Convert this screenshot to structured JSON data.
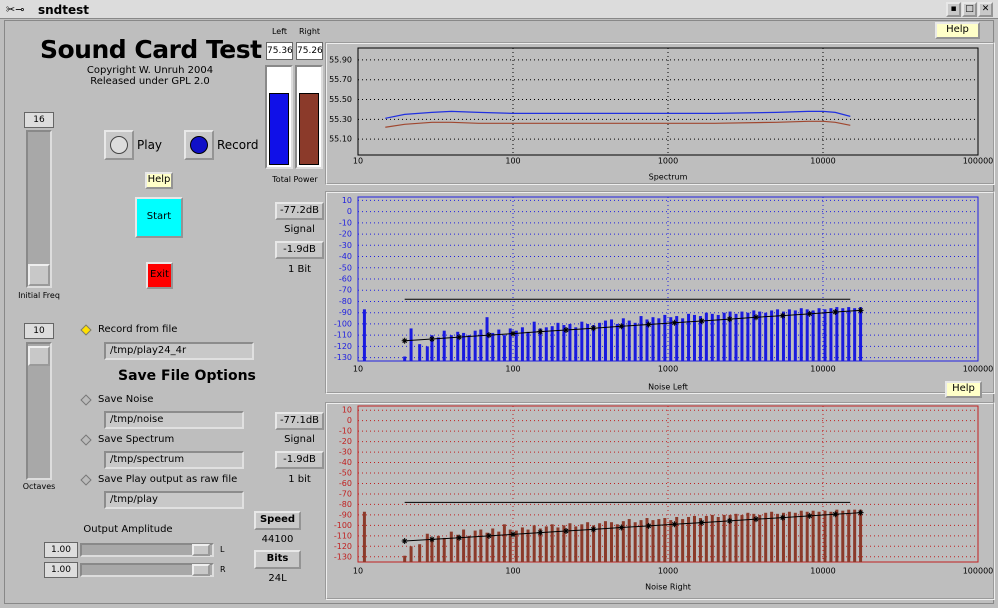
{
  "window": {
    "title": "sndtest"
  },
  "header": {
    "title": "Sound Card Test",
    "copyright": "Copyright W. Unruh 2004",
    "license": "Released under GPL 2.0"
  },
  "sliders": [
    {
      "value": "16",
      "label": "Initial Freq"
    },
    {
      "value": "10",
      "label": "Octaves"
    }
  ],
  "buttons": {
    "play": "Play",
    "record": "Record",
    "help": "Help",
    "start": "Start",
    "exit": "Exit",
    "help_top": "Help",
    "help_mid": "Help"
  },
  "record_from_file": {
    "label": "Record from file",
    "path": "/tmp/play24_4r"
  },
  "save_options": {
    "title": "Save File Options",
    "items": [
      {
        "label": "Save Noise",
        "path": "/tmp/noise"
      },
      {
        "label": "Save Spectrum",
        "path": "/tmp/spectrum"
      },
      {
        "label": "Save Play output as raw file",
        "path": "/tmp/play"
      }
    ]
  },
  "output_amplitude": {
    "label": "Output Amplitude",
    "channels": [
      {
        "value": "1.00",
        "label": "L"
      },
      {
        "value": "1.00",
        "label": "R"
      }
    ]
  },
  "speed": {
    "button": "Speed",
    "value": "44100"
  },
  "bits": {
    "button": "Bits",
    "value": "24L"
  },
  "meters": {
    "left": {
      "label": "Left",
      "value": "75.36"
    },
    "right": {
      "label": "Right",
      "value": "75.26"
    },
    "caption": "Total Power"
  },
  "noise_left_controls": {
    "signal_db": "-77.2dB",
    "signal_label": "Signal",
    "bit_db": "-1.9dB",
    "bit_label": "1 Bit"
  },
  "noise_right_controls": {
    "signal_db": "-77.1dB",
    "signal_label": "Signal",
    "bit_db": "-1.9dB",
    "bit_label": "1 bit"
  },
  "chart_data": [
    {
      "type": "line",
      "xlabel": "Spectrum",
      "xscale": "log",
      "xlim": [
        10,
        100000
      ],
      "xticks": [
        10,
        100,
        1000,
        10000,
        100000
      ],
      "ylim": [
        54.94,
        56.02
      ],
      "yticks": [
        {
          "value": 55.1,
          "label": "55.10"
        },
        {
          "value": 55.3,
          "label": "55.30"
        },
        {
          "value": 55.5,
          "label": "55.50"
        },
        {
          "value": 55.7,
          "label": "55.70"
        },
        {
          "value": 55.9,
          "label": "55.90"
        }
      ],
      "grid": true,
      "grid_color": "#000000",
      "series": [
        {
          "color": "#2030e0",
          "x": [
            15,
            20,
            30,
            40,
            60,
            100,
            200,
            500,
            1000,
            2000,
            5000,
            8000,
            10000,
            12000,
            15000
          ],
          "values": [
            55.31,
            55.35,
            55.37,
            55.38,
            55.37,
            55.36,
            55.36,
            55.36,
            55.36,
            55.36,
            55.37,
            55.38,
            55.38,
            55.37,
            55.33
          ]
        },
        {
          "color": "#a04830",
          "x": [
            15,
            20,
            30,
            40,
            60,
            100,
            200,
            500,
            1000,
            2000,
            5000,
            8000,
            10000,
            12000,
            15000
          ],
          "values": [
            55.22,
            55.25,
            55.27,
            55.27,
            55.26,
            55.26,
            55.26,
            55.26,
            55.26,
            55.26,
            55.27,
            55.28,
            55.28,
            55.27,
            55.24
          ]
        }
      ]
    },
    {
      "type": "bar",
      "xlabel": "Noise Left",
      "xscale": "log",
      "xlim": [
        10,
        100000
      ],
      "xticks": [
        10,
        100,
        1000,
        10000,
        100000
      ],
      "ylim": [
        -133,
        13
      ],
      "yticks": [
        10,
        0,
        -10,
        -20,
        -30,
        -40,
        -50,
        -60,
        -70,
        -80,
        -90,
        -100,
        -110,
        -120,
        -130
      ],
      "grid": true,
      "grid_color": "#2020e0",
      "bars": {
        "color": "#1a1ae0",
        "x": [
          11,
          20,
          22,
          25,
          28,
          30,
          33,
          36,
          40,
          44,
          48,
          52,
          57,
          62,
          68,
          74,
          81,
          88,
          96,
          105,
          115,
          125,
          137,
          150,
          164,
          179,
          195,
          213,
          233,
          254,
          278,
          303,
          331,
          362,
          395,
          432,
          471,
          515,
          562,
          614,
          670,
          732,
          800,
          873,
          954,
          1042,
          1138,
          1243,
          1357,
          1482,
          1619,
          1768,
          1931,
          2109,
          2303,
          2515,
          2747,
          3000,
          3276,
          3578,
          3908,
          4268,
          4661,
          5090,
          5559,
          6071,
          6630,
          7241,
          7908,
          8636,
          9432,
          10300,
          11249,
          12285,
          13416,
          14652,
          16002,
          17476
        ],
        "values": [
          -87,
          -129,
          -104,
          -118,
          -120,
          -110,
          -112,
          -106,
          -110,
          -107,
          -108,
          -110,
          -106,
          -105,
          -94,
          -108,
          -105,
          -110,
          -104,
          -106,
          -103,
          -107,
          -98,
          -104,
          -103,
          -102,
          -99,
          -101,
          -100,
          -103,
          -98,
          -100,
          -101,
          -99,
          -97,
          -96,
          -100,
          -95,
          -97,
          -99,
          -93,
          -96,
          -94,
          -95,
          -92,
          -94,
          -93,
          -95,
          -91,
          -92,
          -93,
          -90,
          -91,
          -92,
          -90,
          -89,
          -91,
          -89,
          -90,
          -88,
          -89,
          -90,
          -88,
          -87,
          -89,
          -87,
          -88,
          -86,
          -87,
          -88,
          -86,
          -87,
          -86,
          -85,
          -86,
          -85,
          -86,
          -85
        ]
      },
      "fit": {
        "color": "#000000",
        "x": [
          20,
          30,
          45,
          70,
          100,
          150,
          220,
          330,
          500,
          750,
          1100,
          1650,
          2500,
          3700,
          5500,
          8200,
          12000,
          17476
        ],
        "values": [
          -115,
          -113.4,
          -111.8,
          -110,
          -108.6,
          -106.9,
          -105.4,
          -103.8,
          -102.1,
          -100.5,
          -99,
          -97.4,
          -95.7,
          -94.1,
          -92.6,
          -91,
          -89.4,
          -87.9
        ]
      },
      "threshold": {
        "color": "#000000",
        "x": [
          20,
          15000
        ],
        "values": [
          -78,
          -78
        ]
      }
    },
    {
      "type": "bar",
      "xlabel": "Noise Right",
      "xscale": "log",
      "xlim": [
        10,
        100000
      ],
      "xticks": [
        10,
        100,
        1000,
        10000,
        100000
      ],
      "ylim": [
        -135,
        14
      ],
      "yticks": [
        10,
        0,
        -10,
        -20,
        -30,
        -40,
        -50,
        -60,
        -70,
        -80,
        -90,
        -100,
        -110,
        -120,
        -130
      ],
      "grid": true,
      "grid_color": "#c02020",
      "bars": {
        "color": "#8b3a2a",
        "x": [
          11,
          20,
          22,
          25,
          28,
          30,
          33,
          36,
          40,
          44,
          48,
          52,
          57,
          62,
          68,
          74,
          81,
          88,
          96,
          105,
          115,
          125,
          137,
          150,
          164,
          179,
          195,
          213,
          233,
          254,
          278,
          303,
          331,
          362,
          395,
          432,
          471,
          515,
          562,
          614,
          670,
          732,
          800,
          873,
          954,
          1042,
          1138,
          1243,
          1357,
          1482,
          1619,
          1768,
          1931,
          2109,
          2303,
          2515,
          2747,
          3000,
          3276,
          3578,
          3908,
          4268,
          4661,
          5090,
          5559,
          6071,
          6630,
          7241,
          7908,
          8636,
          9432,
          10300,
          11249,
          12285,
          13416,
          14652,
          16002,
          17476
        ],
        "values": [
          -87,
          -129,
          -120,
          -118,
          -108,
          -112,
          -110,
          -112,
          -106,
          -109,
          -104,
          -110,
          -105,
          -104,
          -107,
          -103,
          -106,
          -99,
          -104,
          -105,
          -102,
          -104,
          -100,
          -103,
          -101,
          -99,
          -102,
          -100,
          -98,
          -101,
          -99,
          -97,
          -100,
          -98,
          -96,
          -97,
          -99,
          -96,
          -94,
          -97,
          -95,
          -93,
          -95,
          -94,
          -93,
          -95,
          -92,
          -94,
          -92,
          -91,
          -93,
          -91,
          -90,
          -92,
          -90,
          -90,
          -89,
          -90,
          -88,
          -89,
          -90,
          -88,
          -87,
          -89,
          -88,
          -87,
          -88,
          -86,
          -87,
          -86,
          -87,
          -86,
          -87,
          -85,
          -86,
          -85,
          -85,
          -85
        ]
      },
      "fit": {
        "color": "#000000",
        "x": [
          20,
          30,
          45,
          70,
          100,
          150,
          220,
          330,
          500,
          750,
          1100,
          1650,
          2500,
          3700,
          5500,
          8200,
          12000,
          17476
        ],
        "values": [
          -115,
          -113.4,
          -111.8,
          -110,
          -108.6,
          -106.9,
          -105.4,
          -103.8,
          -102.1,
          -100.5,
          -99,
          -97.4,
          -95.7,
          -94.1,
          -92.6,
          -91,
          -89.4,
          -87.9
        ]
      },
      "threshold": {
        "color": "#000000",
        "x": [
          20,
          15000
        ],
        "values": [
          -78,
          -78
        ]
      }
    }
  ]
}
